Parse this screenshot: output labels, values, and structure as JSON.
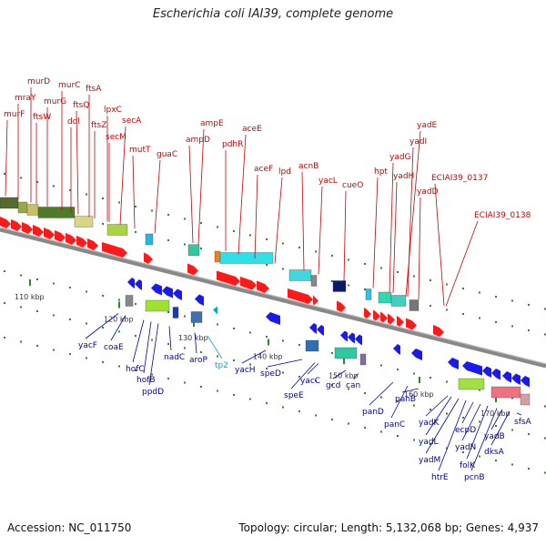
{
  "title": "Escherichia coli IAI39, complete genome",
  "footer": {
    "accession": "Accession: NC_011750",
    "summary": "Topology: circular; Length: 5,132,068 bp; Genes: 4,937"
  },
  "colors": {
    "forward_label": "#cc0000",
    "reverse_label": "#0000aa",
    "trna_label": "#00aacc",
    "forward_arrow": "#ff1a1a",
    "reverse_arrow": "#1a1aee",
    "backbone": "#888888",
    "tick": "#2a8a2a"
  },
  "ticks": [
    "110 kbp",
    "120 kbp",
    "130 kbp",
    "140 kbp",
    "150 kbp",
    "160 kbp",
    "170 kbp"
  ],
  "forward_genes": [
    "murF",
    "mraY",
    "murD",
    "ftsW",
    "murG",
    "murC",
    "ddl",
    "ftsQ",
    "ftsA",
    "ftsZ",
    "lpxC",
    "secM",
    "secA",
    "mutT",
    "guaC",
    "ampD",
    "ampE",
    "pdhR",
    "aceE",
    "aceF",
    "lpd",
    "acnB",
    "yacL",
    "cueO",
    "hpt",
    "yadG",
    "yadH",
    "yadI",
    "yadE",
    "yadD",
    "ECIAI39_0137",
    "ECIAI39_0138"
  ],
  "reverse_genes": [
    "yacF",
    "coaE",
    "hofC",
    "hofB",
    "ppdD",
    "nadC",
    "aroP",
    "tp2",
    "yacH",
    "speD",
    "speE",
    "yacC",
    "gcd",
    "can",
    "panD",
    "panC",
    "panB",
    "yadK",
    "yadL",
    "yadM",
    "htrE",
    "ecpD",
    "yadN",
    "folK",
    "pcnB",
    "yadB",
    "dksA",
    "sfsA"
  ]
}
